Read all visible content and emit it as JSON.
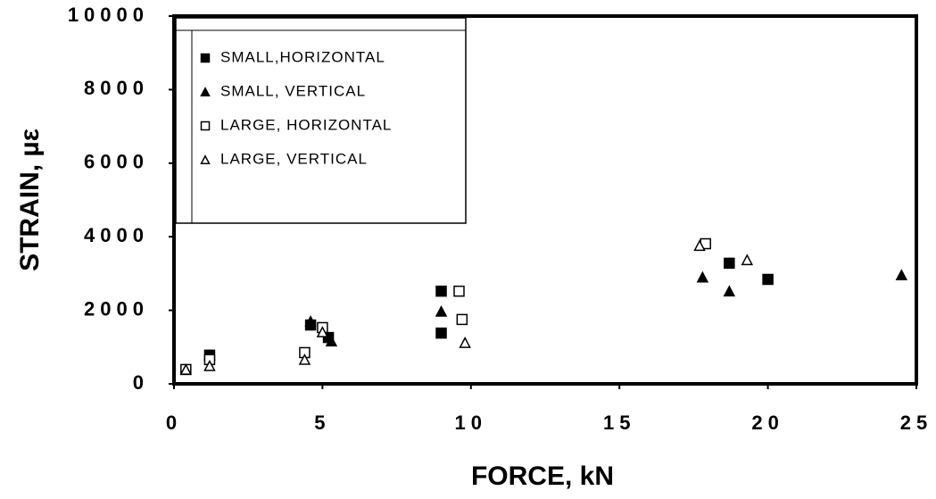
{
  "chart_data": {
    "type": "scatter",
    "x_label": "FORCE,  kN",
    "y_label": "STRAIN,  µε",
    "xlim": [
      0,
      25
    ],
    "xticks": [
      0,
      5,
      10,
      15,
      20,
      25
    ],
    "ylim": [
      0,
      10000
    ],
    "yticks": [
      0,
      2000,
      4000,
      6000,
      8000,
      10000
    ],
    "series": [
      {
        "name": "SMALL,HORIZONTAL",
        "color": "#000000",
        "marker": "filled-square",
        "x": [
          1.2,
          4.6,
          5.2,
          9.0,
          9.0,
          18.7,
          20.0
        ],
        "values": [
          780,
          1600,
          1260,
          1380,
          2520,
          3280,
          2840
        ]
      },
      {
        "name": "SMALL,  VERTICAL",
        "color": "#000000",
        "marker": "filled-triangle",
        "x": [
          1.2,
          4.6,
          5.3,
          9.0,
          17.8,
          18.7,
          24.5
        ],
        "values": [
          780,
          1700,
          1160,
          1970,
          2900,
          2520,
          2960
        ]
      },
      {
        "name": "LARGE,  HORIZONTAL",
        "color": "#000000",
        "marker": "open-square",
        "x": [
          0.4,
          1.2,
          4.4,
          5.0,
          9.6,
          9.7,
          17.9
        ],
        "values": [
          390,
          660,
          850,
          1530,
          2520,
          1750,
          3810
        ]
      },
      {
        "name": "LARGE,  VERTICAL",
        "color": "#000000",
        "marker": "open-triangle",
        "x": [
          0.4,
          1.2,
          4.4,
          5.0,
          9.8,
          17.7,
          19.3
        ],
        "values": [
          390,
          490,
          660,
          1410,
          1120,
          3760,
          3370
        ]
      }
    ]
  }
}
